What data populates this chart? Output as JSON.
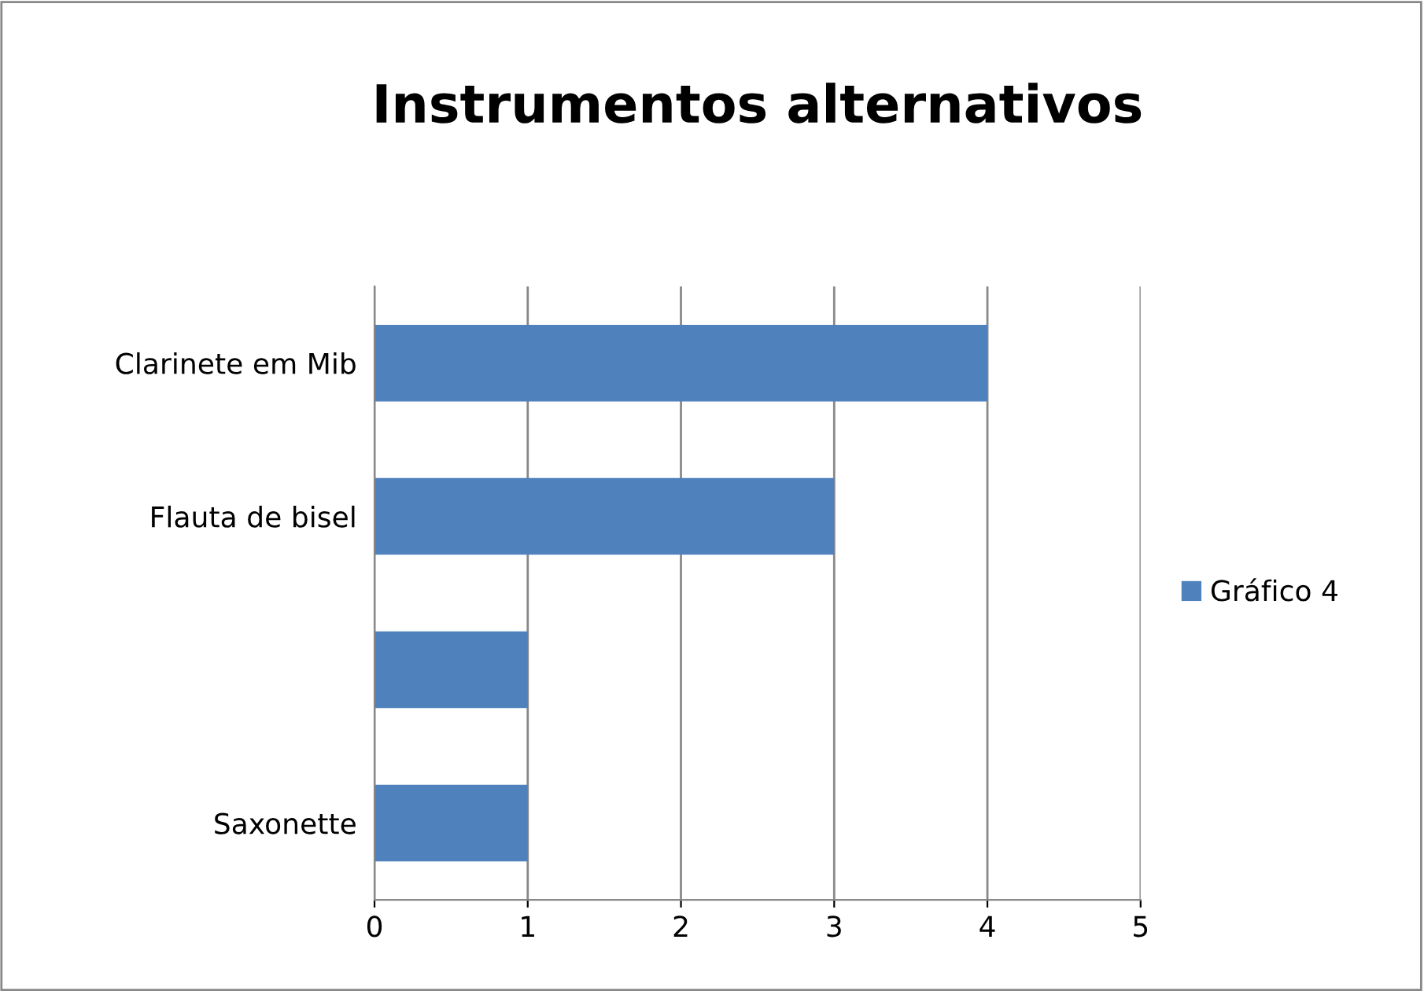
{
  "chart_data": {
    "type": "bar",
    "orientation": "horizontal",
    "title": "Instrumentos alternativos",
    "categories": [
      "Clarinete em Mib",
      "Flauta de bisel",
      null,
      "Saxonette"
    ],
    "series": [
      {
        "name": "Gráfico 4",
        "color": "#4f81bd",
        "values": [
          4,
          3,
          1,
          1
        ]
      }
    ],
    "xlim": [
      0,
      5
    ],
    "xticks": [
      0,
      1,
      2,
      3,
      4,
      5
    ],
    "grid": "x",
    "legend": "right"
  }
}
